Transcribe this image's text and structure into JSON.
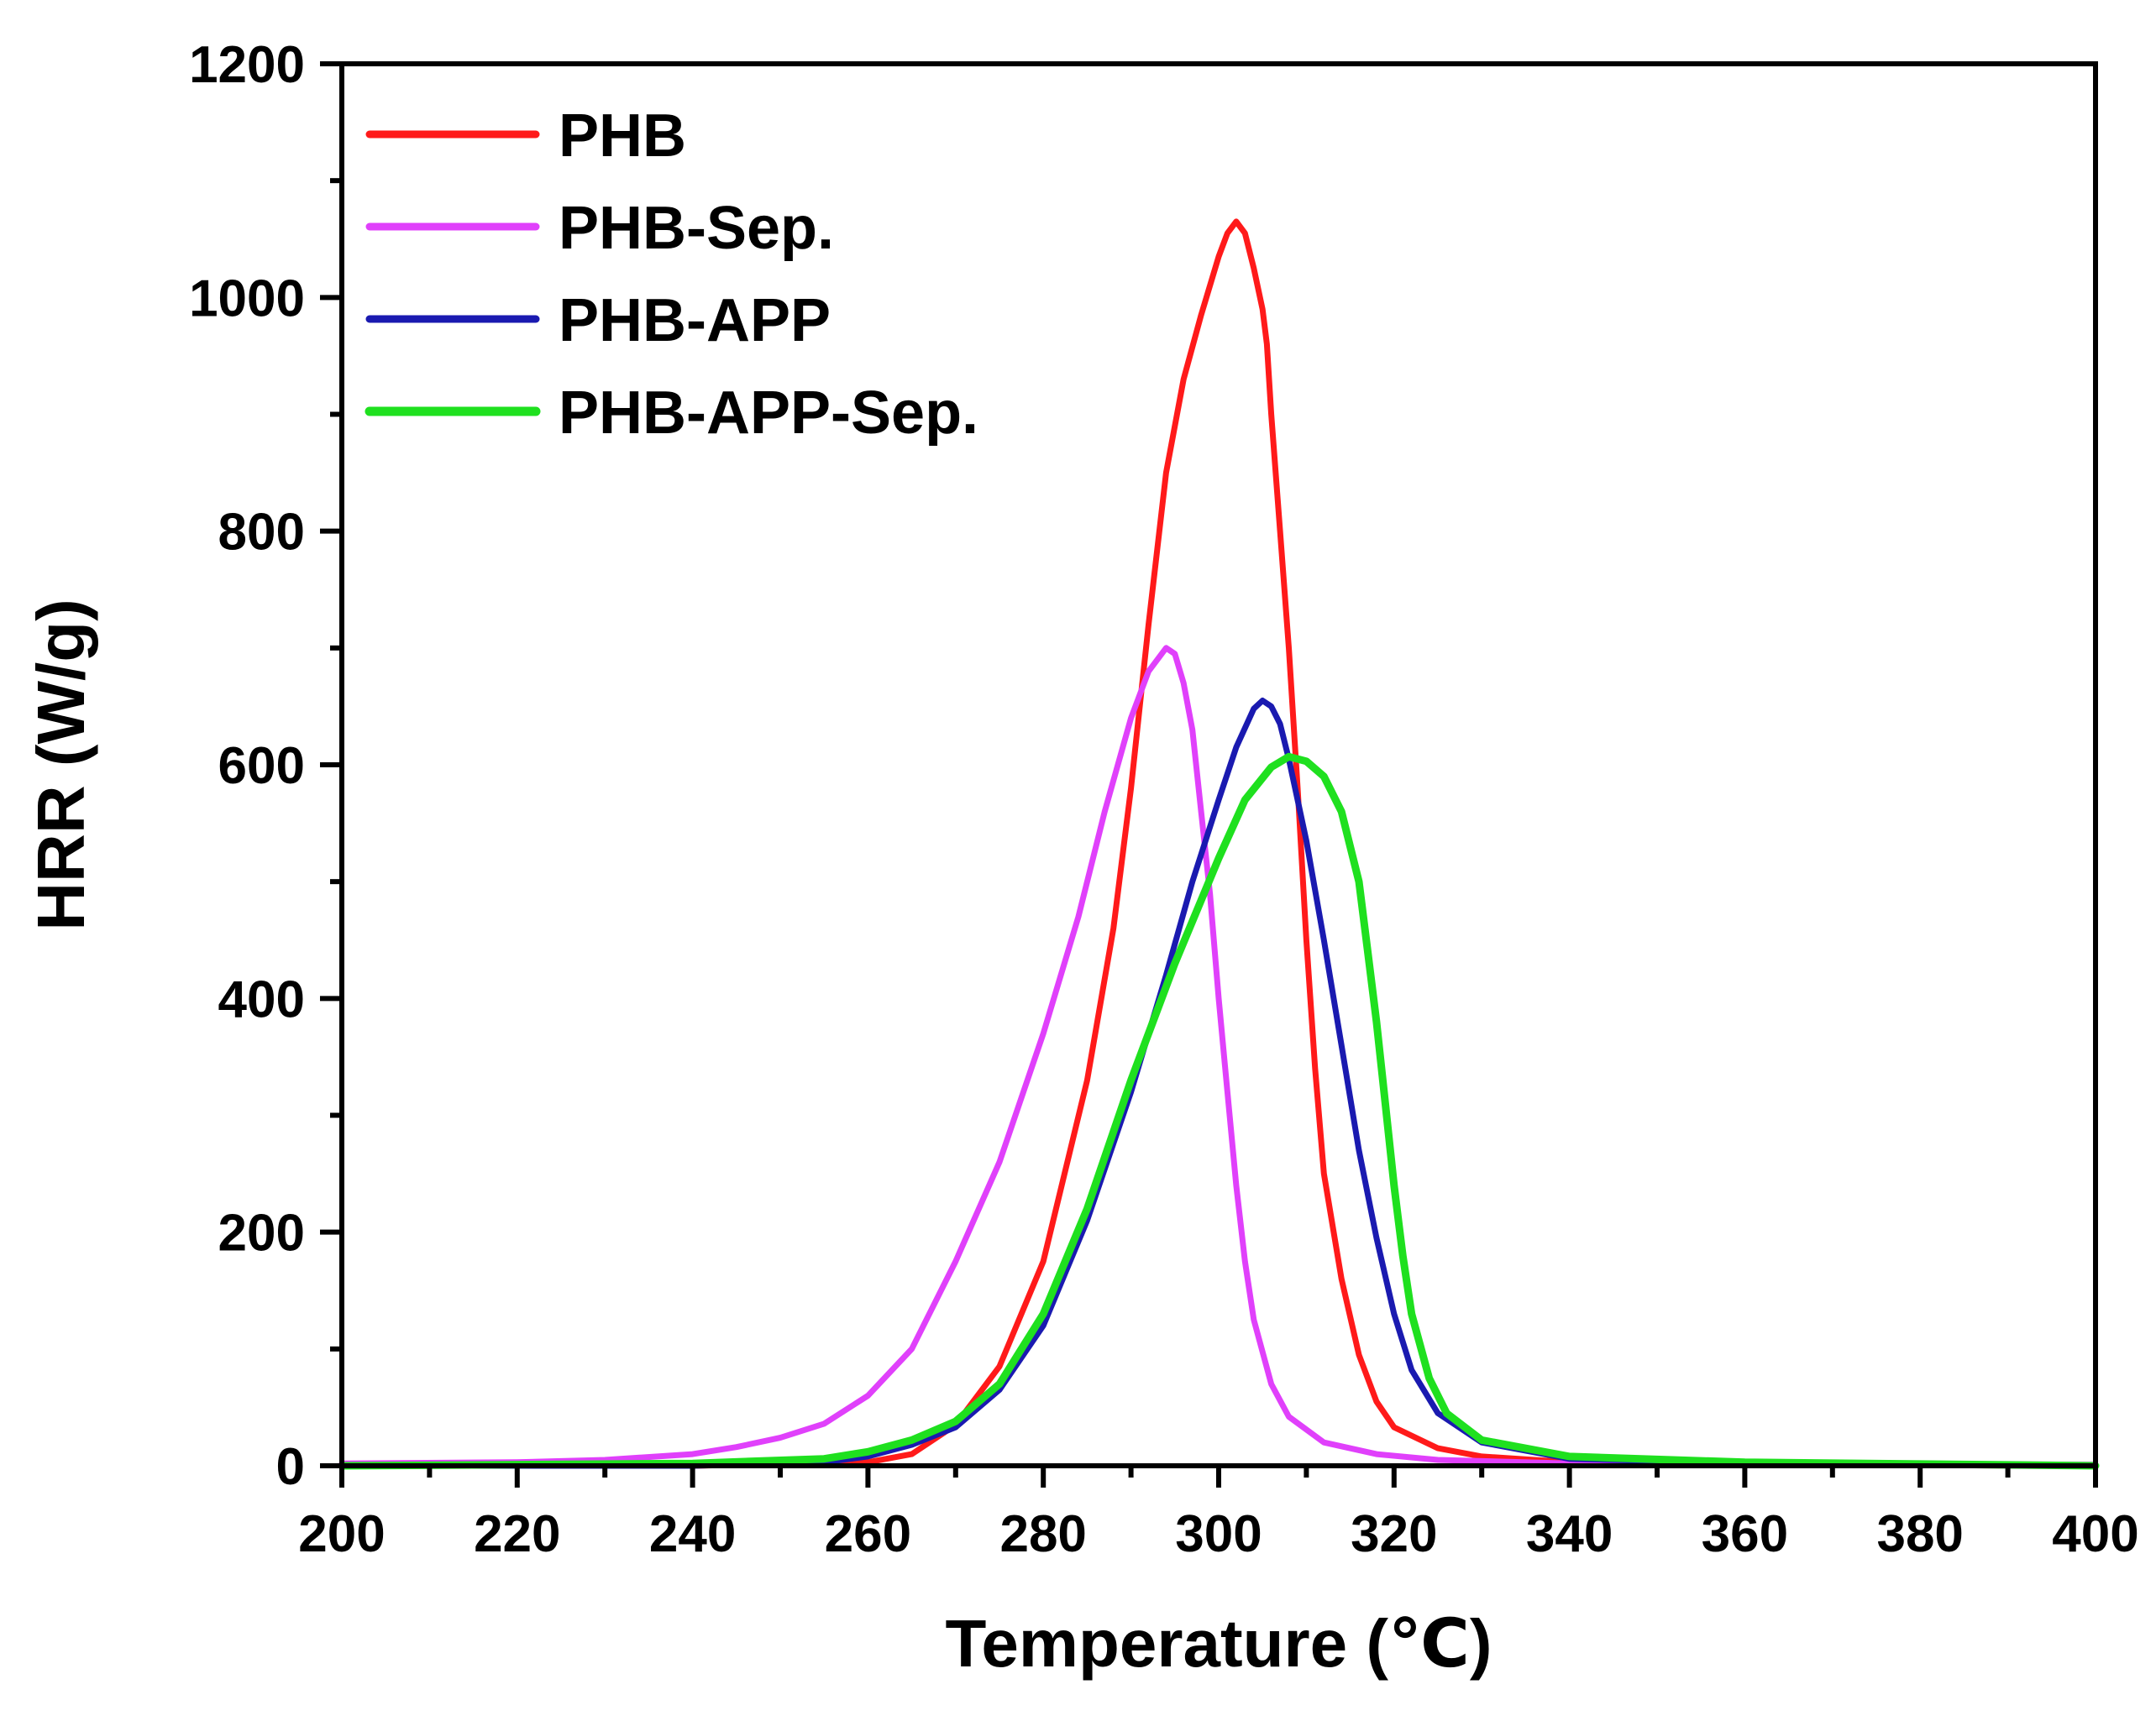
{
  "chart_data": {
    "type": "line",
    "title": "",
    "xlabel": "Temperature (℃)",
    "ylabel": "HRR (W/g)",
    "xlim": [
      200,
      400
    ],
    "ylim": [
      0,
      1200
    ],
    "xticks": [
      200,
      220,
      240,
      260,
      280,
      300,
      320,
      340,
      360,
      380,
      400
    ],
    "yticks": [
      0,
      200,
      400,
      600,
      800,
      1000,
      1200
    ],
    "grid": false,
    "legend_position": "top-left",
    "series": [
      {
        "name": "PHB",
        "color": "#ff1a1a",
        "points": [
          [
            200,
            0
          ],
          [
            240,
            0
          ],
          [
            260,
            3
          ],
          [
            265,
            10
          ],
          [
            270,
            35
          ],
          [
            275,
            85
          ],
          [
            280,
            175
          ],
          [
            285,
            330
          ],
          [
            288,
            460
          ],
          [
            290,
            580
          ],
          [
            292,
            720
          ],
          [
            294,
            850
          ],
          [
            296,
            930
          ],
          [
            298,
            985
          ],
          [
            300,
            1035
          ],
          [
            301,
            1055
          ],
          [
            302,
            1065
          ],
          [
            303,
            1055
          ],
          [
            304,
            1025
          ],
          [
            305,
            990
          ],
          [
            305.5,
            960
          ],
          [
            306,
            900
          ],
          [
            307,
            800
          ],
          [
            308,
            700
          ],
          [
            309,
            580
          ],
          [
            310,
            450
          ],
          [
            311,
            340
          ],
          [
            312,
            250
          ],
          [
            314,
            160
          ],
          [
            316,
            95
          ],
          [
            318,
            55
          ],
          [
            320,
            33
          ],
          [
            325,
            15
          ],
          [
            330,
            8
          ],
          [
            340,
            3
          ],
          [
            360,
            1
          ],
          [
            400,
            0
          ]
        ]
      },
      {
        "name": "PHB-Sep.",
        "color": "#e040fb",
        "points": [
          [
            200,
            2
          ],
          [
            220,
            3
          ],
          [
            230,
            5
          ],
          [
            240,
            10
          ],
          [
            245,
            16
          ],
          [
            250,
            24
          ],
          [
            255,
            36
          ],
          [
            260,
            60
          ],
          [
            265,
            100
          ],
          [
            270,
            175
          ],
          [
            275,
            260
          ],
          [
            280,
            370
          ],
          [
            284,
            470
          ],
          [
            287,
            560
          ],
          [
            290,
            640
          ],
          [
            292,
            680
          ],
          [
            294,
            700
          ],
          [
            295,
            695
          ],
          [
            296,
            670
          ],
          [
            297,
            630
          ],
          [
            298,
            560
          ],
          [
            299,
            490
          ],
          [
            300,
            400
          ],
          [
            301,
            320
          ],
          [
            302,
            240
          ],
          [
            303,
            175
          ],
          [
            304,
            125
          ],
          [
            306,
            70
          ],
          [
            308,
            42
          ],
          [
            312,
            20
          ],
          [
            318,
            10
          ],
          [
            325,
            5
          ],
          [
            340,
            2
          ],
          [
            400,
            1
          ]
        ]
      },
      {
        "name": "PHB-APP",
        "color": "#1a1ab0",
        "points": [
          [
            200,
            0
          ],
          [
            240,
            0
          ],
          [
            255,
            3
          ],
          [
            260,
            8
          ],
          [
            265,
            18
          ],
          [
            270,
            33
          ],
          [
            275,
            65
          ],
          [
            280,
            120
          ],
          [
            285,
            210
          ],
          [
            290,
            320
          ],
          [
            294,
            420
          ],
          [
            297,
            500
          ],
          [
            300,
            570
          ],
          [
            302,
            615
          ],
          [
            304,
            648
          ],
          [
            305,
            655
          ],
          [
            306,
            650
          ],
          [
            307,
            635
          ],
          [
            308,
            605
          ],
          [
            310,
            535
          ],
          [
            312,
            450
          ],
          [
            314,
            360
          ],
          [
            316,
            270
          ],
          [
            318,
            195
          ],
          [
            320,
            130
          ],
          [
            322,
            82
          ],
          [
            325,
            45
          ],
          [
            330,
            20
          ],
          [
            340,
            6
          ],
          [
            360,
            2
          ],
          [
            400,
            0
          ]
        ]
      },
      {
        "name": "PHB-APP-Sep.",
        "color": "#1fe01f",
        "points": [
          [
            200,
            0
          ],
          [
            240,
            2
          ],
          [
            255,
            6
          ],
          [
            260,
            12
          ],
          [
            265,
            22
          ],
          [
            270,
            38
          ],
          [
            275,
            70
          ],
          [
            280,
            130
          ],
          [
            285,
            220
          ],
          [
            290,
            330
          ],
          [
            295,
            430
          ],
          [
            300,
            520
          ],
          [
            303,
            570
          ],
          [
            306,
            598
          ],
          [
            308,
            607
          ],
          [
            310,
            603
          ],
          [
            312,
            590
          ],
          [
            314,
            560
          ],
          [
            316,
            500
          ],
          [
            317,
            440
          ],
          [
            318,
            380
          ],
          [
            319,
            310
          ],
          [
            320,
            240
          ],
          [
            321,
            180
          ],
          [
            322,
            130
          ],
          [
            324,
            75
          ],
          [
            326,
            45
          ],
          [
            330,
            22
          ],
          [
            340,
            8
          ],
          [
            360,
            3
          ],
          [
            400,
            0
          ]
        ]
      }
    ]
  }
}
